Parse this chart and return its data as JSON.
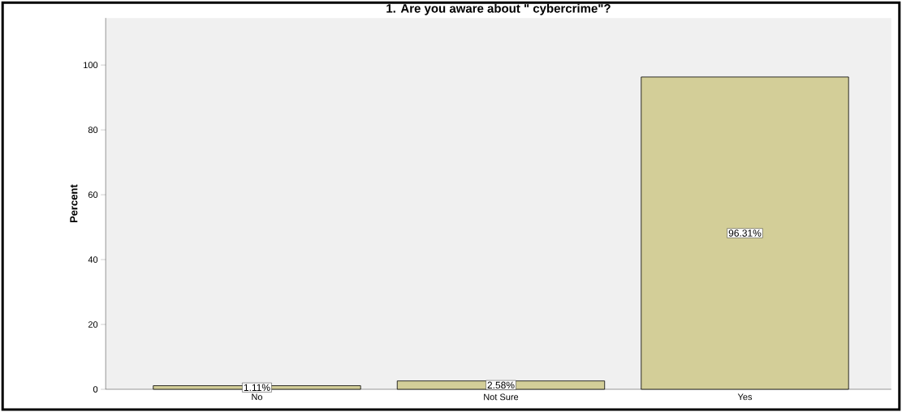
{
  "chart_data": {
    "type": "bar",
    "title": "1. Are you aware about \" cybercrime\"?",
    "ylabel": "Percent",
    "categories": [
      "No",
      "Not Sure",
      "Yes"
    ],
    "values": [
      1.11,
      2.58,
      96.31
    ],
    "value_labels": [
      "1.11%",
      "2.58%",
      "96.31%"
    ],
    "color": "#d3ce98",
    "ylim": [
      0,
      114.5
    ],
    "yticks": [
      0,
      20,
      40,
      60,
      80,
      100
    ],
    "grid": false
  }
}
